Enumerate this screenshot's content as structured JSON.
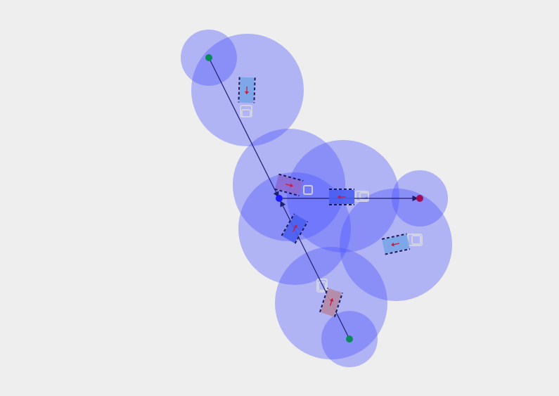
{
  "colors": {
    "background": "#eeeeee",
    "zone_fill": "#4d55ff",
    "agent_body_blue": "#7aa6e8",
    "agent_body_purple": "#9c7ab8",
    "agent_wheel": "#1a1a55",
    "heading_arrow": "#cc1a3c",
    "path_line": "#1e1e6e",
    "waypoint_green": "#0a8a5a",
    "waypoint_blue": "#1a1aff",
    "waypoint_magenta": "#a0105a",
    "ghost": "#c8c8dc"
  },
  "scene": {
    "agents": [
      {
        "id": "agent-north",
        "heading_deg": 100,
        "color": "blue"
      },
      {
        "id": "agent-center-a",
        "heading_deg": 15,
        "color": "purple"
      },
      {
        "id": "agent-center-b",
        "heading_deg": 0,
        "color": "blue-dark"
      },
      {
        "id": "agent-center-c",
        "heading_deg": -60,
        "color": "blue-dark"
      },
      {
        "id": "agent-east",
        "heading_deg": -10,
        "color": "blue"
      },
      {
        "id": "agent-south",
        "heading_deg": -75,
        "color": "purple"
      }
    ],
    "waypoints": [
      {
        "id": "start-north",
        "kind": "green"
      },
      {
        "id": "hub",
        "kind": "blue"
      },
      {
        "id": "goal-east",
        "kind": "magenta"
      },
      {
        "id": "start-south",
        "kind": "green"
      }
    ],
    "paths": [
      {
        "from": "start-north",
        "to": "hub"
      },
      {
        "from": "start-south",
        "to": "hub"
      },
      {
        "from": "hub",
        "to": "goal-east"
      }
    ]
  }
}
